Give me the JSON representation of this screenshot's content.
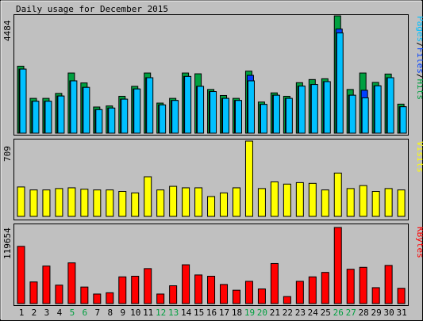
{
  "chart_data": [
    {
      "type": "bar",
      "title": "Daily usage for December 2015",
      "ymax_label": "4484",
      "side_label": [
        {
          "text": "Pages",
          "color": "#00c0ff"
        },
        {
          "text": "/",
          "color": "#000000"
        },
        {
          "text": "Files",
          "color": "#0040ff"
        },
        {
          "text": "/",
          "color": "#000000"
        },
        {
          "text": "Hits",
          "color": "#00a040"
        }
      ],
      "categories": [
        "1",
        "2",
        "3",
        "4",
        "5",
        "6",
        "7",
        "8",
        "9",
        "10",
        "11",
        "12",
        "13",
        "14",
        "15",
        "16",
        "17",
        "18",
        "19",
        "20",
        "21",
        "22",
        "23",
        "24",
        "25",
        "26",
        "27",
        "28",
        "29",
        "30",
        "31"
      ],
      "weekend_days": [
        "5",
        "6",
        "12",
        "13",
        "19",
        "20",
        "26",
        "27"
      ],
      "ylim": [
        0,
        4484
      ],
      "series": [
        {
          "name": "Hits",
          "color": "#00a040",
          "values": [
            2560,
            1330,
            1330,
            1520,
            2300,
            1920,
            1000,
            1040,
            1410,
            1790,
            2300,
            1150,
            1330,
            2300,
            2270,
            1670,
            1440,
            1330,
            2370,
            1190,
            1540,
            1410,
            1930,
            2050,
            2080,
            4500,
            1670,
            2300,
            1940,
            2260,
            1110
          ]
        },
        {
          "name": "Files",
          "color": "#0040ff",
          "values": [
            2450,
            1220,
            1220,
            1420,
            2000,
            1750,
            900,
            960,
            1300,
            1690,
            2120,
            1080,
            1250,
            2170,
            1790,
            1590,
            1330,
            1250,
            2210,
            1100,
            1450,
            1330,
            1800,
            1860,
            1970,
            3980,
            1450,
            1640,
            1810,
            2120,
            1010
          ]
        },
        {
          "name": "Pages",
          "color": "#00c0ff",
          "values": [
            2450,
            1220,
            1220,
            1420,
            2000,
            1750,
            900,
            960,
            1300,
            1690,
            2120,
            1080,
            1250,
            2170,
            1790,
            1590,
            1330,
            1250,
            2000,
            1100,
            1450,
            1330,
            1800,
            1860,
            1970,
            3830,
            1450,
            1350,
            1810,
            2120,
            1010
          ]
        }
      ]
    },
    {
      "type": "bar",
      "ymax_label": "709",
      "side_label": [
        {
          "text": "Visits",
          "color": "#ffff00"
        }
      ],
      "categories": [
        "1",
        "2",
        "3",
        "4",
        "5",
        "6",
        "7",
        "8",
        "9",
        "10",
        "11",
        "12",
        "13",
        "14",
        "15",
        "16",
        "17",
        "18",
        "19",
        "20",
        "21",
        "22",
        "23",
        "24",
        "25",
        "26",
        "27",
        "28",
        "29",
        "30",
        "31"
      ],
      "ylim": [
        0,
        709
      ],
      "series": [
        {
          "name": "Visits",
          "color": "#ffff00",
          "values": [
            277,
            249,
            249,
            262,
            269,
            256,
            249,
            249,
            235,
            221,
            373,
            249,
            283,
            269,
            269,
            187,
            221,
            269,
            709,
            262,
            325,
            304,
            318,
            311,
            249,
            408,
            262,
            290,
            235,
            262,
            249
          ]
        }
      ]
    },
    {
      "type": "bar",
      "ymax_label": "119654",
      "side_label": [
        {
          "text": "KBytes",
          "color": "#ff0000"
        }
      ],
      "categories": [
        "1",
        "2",
        "3",
        "4",
        "5",
        "6",
        "7",
        "8",
        "9",
        "10",
        "11",
        "12",
        "13",
        "14",
        "15",
        "16",
        "17",
        "18",
        "19",
        "20",
        "21",
        "22",
        "23",
        "24",
        "25",
        "26",
        "27",
        "28",
        "29",
        "30",
        "31"
      ],
      "ylim": [
        0,
        119654
      ],
      "series": [
        {
          "name": "KBytes",
          "color": "#ff0000",
          "values": [
            90000,
            34000,
            59000,
            29000,
            64000,
            26000,
            15000,
            17000,
            42000,
            43000,
            55000,
            15000,
            28000,
            61000,
            45000,
            43000,
            30000,
            21000,
            35000,
            23000,
            63000,
            11000,
            35000,
            42000,
            49000,
            119654,
            54000,
            57000,
            25000,
            60000,
            24000
          ]
        }
      ]
    }
  ]
}
